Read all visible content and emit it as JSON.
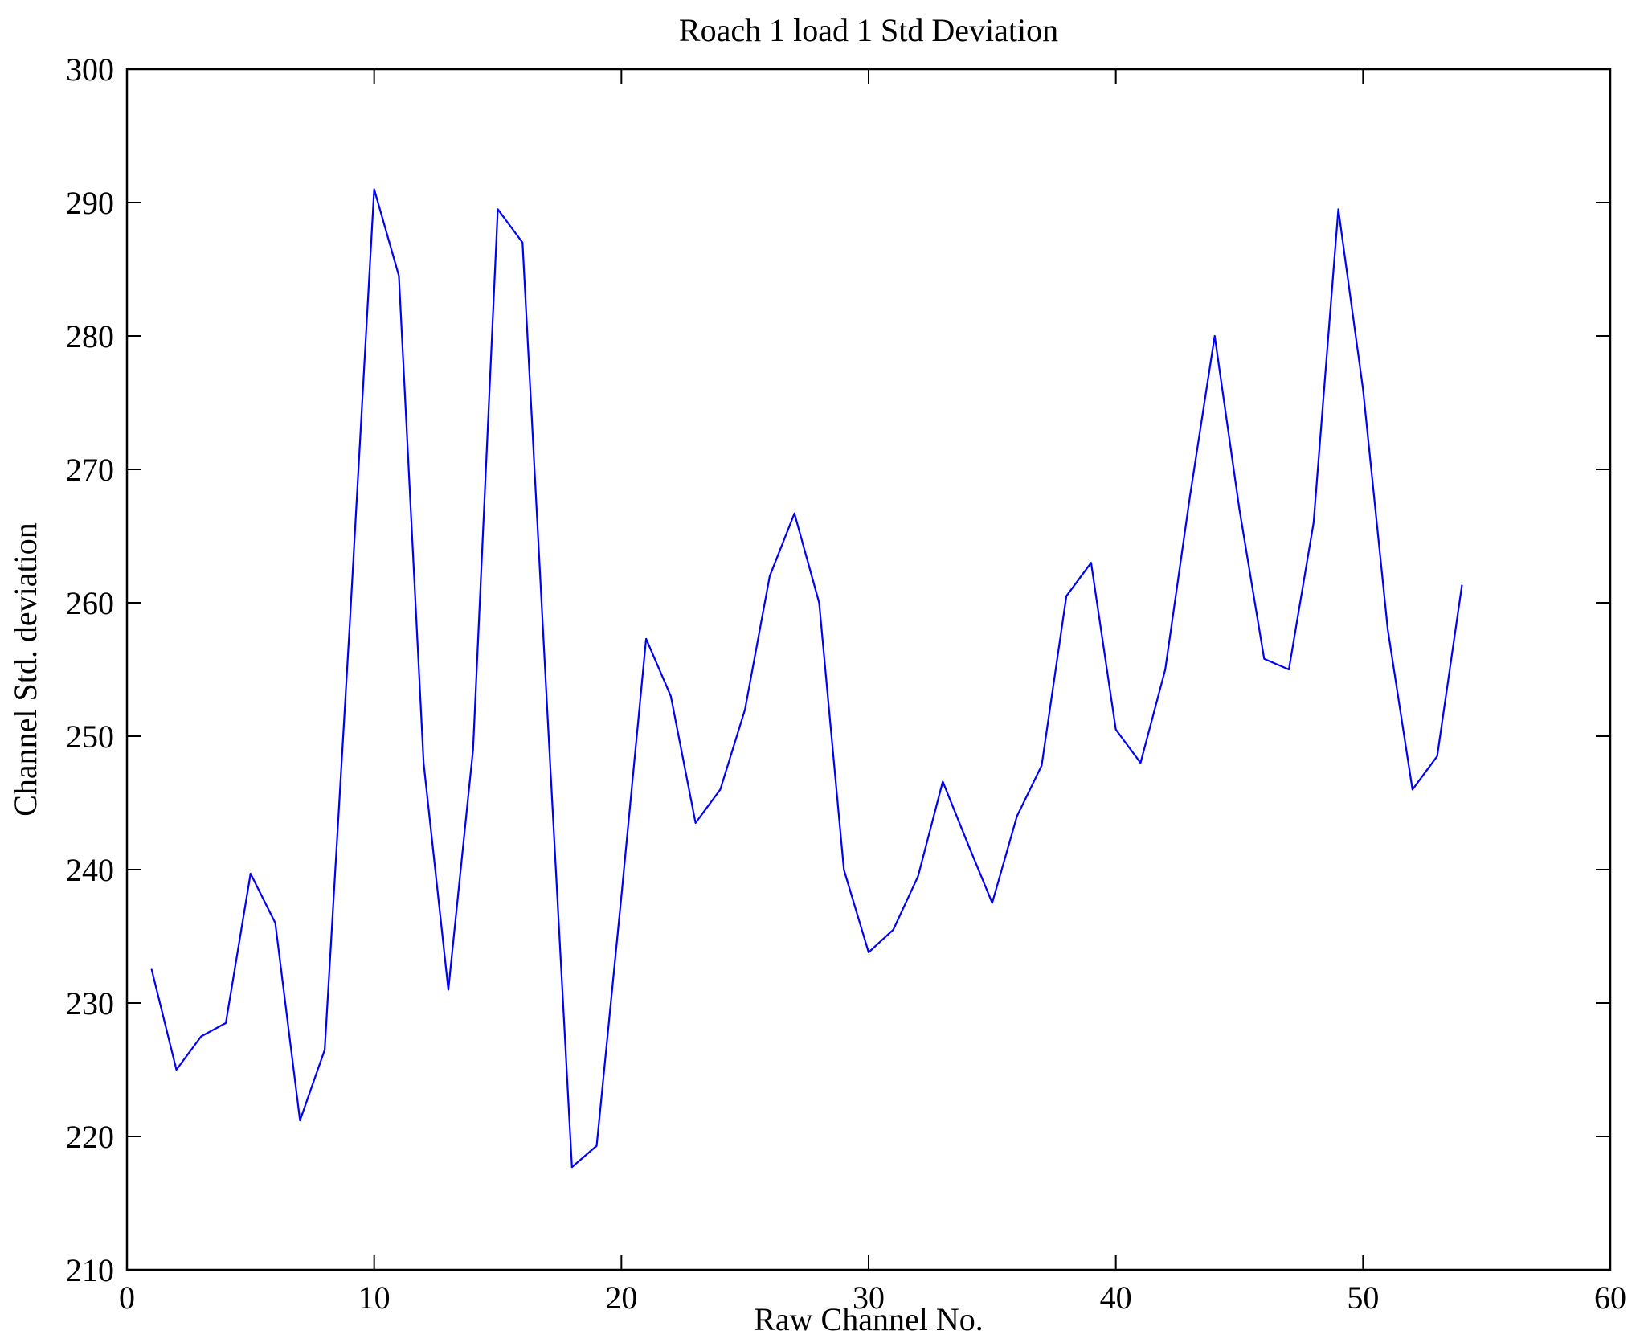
{
  "page": {
    "background": "#ffffff"
  },
  "chart_data": {
    "type": "line",
    "title": "Roach 1 load 1 Std Deviation",
    "xlabel": "Raw Channel No.",
    "ylabel": "Channel Std. deviation",
    "xlim": [
      0,
      60
    ],
    "ylim": [
      210,
      300
    ],
    "xticks": [
      0,
      10,
      20,
      30,
      40,
      50,
      60
    ],
    "yticks": [
      210,
      220,
      230,
      240,
      250,
      260,
      270,
      280,
      290,
      300
    ],
    "grid": false,
    "legend": "none",
    "line_color": "#0000ff",
    "frame_color": "#000000",
    "x": [
      1,
      2,
      3,
      4,
      5,
      6,
      7,
      8,
      9,
      10,
      11,
      12,
      13,
      14,
      15,
      16,
      17,
      18,
      19,
      20,
      21,
      22,
      23,
      24,
      25,
      26,
      27,
      28,
      29,
      30,
      31,
      32,
      33,
      34,
      35,
      36,
      37,
      38,
      39,
      40,
      41,
      42,
      43,
      44,
      45,
      46,
      47,
      48,
      49,
      50,
      51,
      52,
      53,
      54
    ],
    "y": [
      232.5,
      225.0,
      227.5,
      228.5,
      239.7,
      236.0,
      221.2,
      226.5,
      258.0,
      291.0,
      284.5,
      248.0,
      231.0,
      249.0,
      289.5,
      287.0,
      252.0,
      217.7,
      219.3,
      238.0,
      257.3,
      253.0,
      243.5,
      246.0,
      252.0,
      262.0,
      266.7,
      260.0,
      240.0,
      233.8,
      235.5,
      239.5,
      246.6,
      242.0,
      237.5,
      244.0,
      247.8,
      260.5,
      263.0,
      250.5,
      248.0,
      255.0,
      268.0,
      280.0,
      267.0,
      255.8,
      255.0,
      266.0,
      289.5,
      276.0,
      258.0,
      246.0,
      248.5,
      261.3
    ]
  }
}
